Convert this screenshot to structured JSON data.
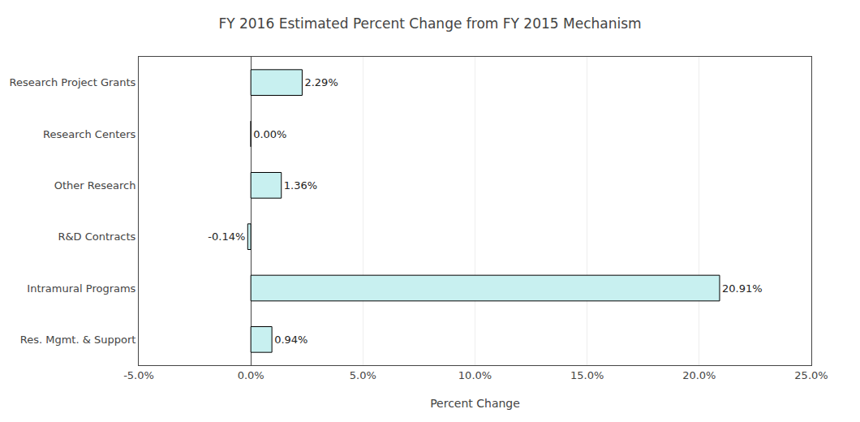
{
  "chart_data": {
    "type": "bar",
    "orientation": "horizontal",
    "title": "FY 2016 Estimated Percent Change from FY 2015 Mechanism",
    "categories": [
      "Research Project Grants",
      "Research Centers",
      "Other Research",
      "R&D Contracts",
      "Intramural Programs",
      "Res. Mgmt. & Support"
    ],
    "values": [
      2.29,
      0.0,
      1.36,
      -0.14,
      20.91,
      0.94
    ],
    "value_labels": [
      "2.29%",
      "0.00%",
      "1.36%",
      "-0.14%",
      "20.91%",
      "0.94%"
    ],
    "data_labels": true,
    "color": "#c8f0f0",
    "xlabel": "Percent Change",
    "xlim": [
      -5.0,
      25.0
    ],
    "xticks": [
      {
        "value": -5.0,
        "label": "-5.0%"
      },
      {
        "value": 0.0,
        "label": "0.0%"
      },
      {
        "value": 5.0,
        "label": "5.0%"
      },
      {
        "value": 10.0,
        "label": "10.0%"
      },
      {
        "value": 15.0,
        "label": "15.0%"
      },
      {
        "value": 20.0,
        "label": "20.0%"
      },
      {
        "value": 25.0,
        "label": "25.0%"
      }
    ],
    "grid": true
  }
}
